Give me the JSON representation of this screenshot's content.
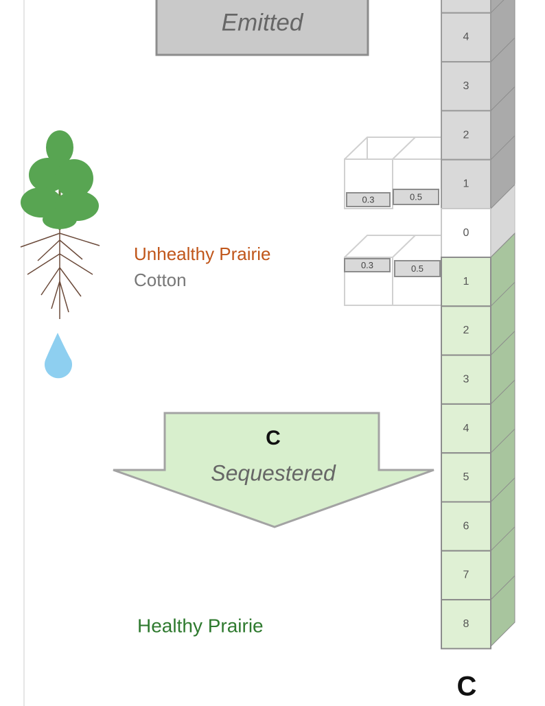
{
  "emitted_box": {
    "label": "Emitted"
  },
  "scale": {
    "emitted_cells": [
      4,
      3,
      2,
      1
    ],
    "zero": 0,
    "sequestered_cells": [
      1,
      2,
      3,
      4,
      5,
      6,
      7,
      8
    ]
  },
  "cotton_emitted_boxes": [
    0.3,
    0.5
  ],
  "cotton_sequestered_boxes": [
    0.3,
    0.5
  ],
  "labels": {
    "unhealthy": "Unhealthy Prairie",
    "cotton": "Cotton",
    "healthy": "Healthy Prairie"
  },
  "sequestered_arrow": {
    "symbol": "C",
    "label": "Sequestered"
  },
  "scale_symbol": "C"
}
